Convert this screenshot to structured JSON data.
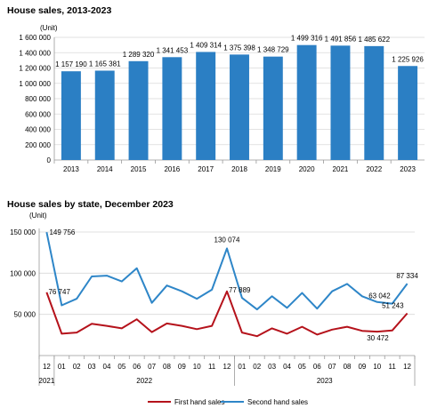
{
  "chart_data": [
    {
      "type": "bar",
      "title": "House sales, 2013-2023",
      "ylabel": "(Unit)",
      "categories": [
        "2013",
        "2014",
        "2015",
        "2016",
        "2017",
        "2018",
        "2019",
        "2020",
        "2021",
        "2022",
        "2023"
      ],
      "values": [
        1157190,
        1165381,
        1289320,
        1341453,
        1409314,
        1375398,
        1348729,
        1499316,
        1491856,
        1485622,
        1225926
      ],
      "data_labels": [
        "1 157 190",
        "1 165 381",
        "1 289 320",
        "1 341 453",
        "1 409 314",
        "1 375 398",
        "1 348 729",
        "1 499 316",
        "1 491 856",
        "1 485 622",
        "1 225 926"
      ],
      "ylim": [
        0,
        1600000
      ],
      "yticks": [
        0,
        200000,
        400000,
        600000,
        800000,
        1000000,
        1200000,
        1400000,
        1600000
      ],
      "ytick_labels": [
        "0",
        "200 000",
        "400 000",
        "600 000",
        "800 000",
        "1 000 000",
        "1 200 000",
        "1 400 000",
        "1 600 000"
      ],
      "color": "#2b7fc4",
      "grid": true
    },
    {
      "type": "line",
      "title": "House sales by state, December 2023",
      "ylabel": "(Unit)",
      "months": [
        "12",
        "01",
        "02",
        "03",
        "04",
        "05",
        "06",
        "07",
        "08",
        "09",
        "10",
        "11",
        "12",
        "01",
        "02",
        "03",
        "04",
        "05",
        "06",
        "07",
        "08",
        "09",
        "10",
        "11",
        "12"
      ],
      "year_labels": [
        "2021",
        "2022",
        "2023"
      ],
      "ylim": [
        0,
        150000
      ],
      "yticks": [
        50000,
        100000,
        150000
      ],
      "ytick_labels": [
        "50 000",
        "100 000",
        "150 000"
      ],
      "grid": true,
      "legend_position": "bottom",
      "series": [
        {
          "name": "First hand sales",
          "color": "#b5121b",
          "values": [
            76747,
            26500,
            28000,
            38500,
            36000,
            33000,
            44000,
            28500,
            39000,
            36000,
            32000,
            36000,
            77889,
            28000,
            23500,
            33000,
            26500,
            35000,
            25500,
            31500,
            35000,
            30000,
            29000,
            30472,
            51243
          ]
        },
        {
          "name": "Second hand sales",
          "color": "#2e86c8",
          "values": [
            149756,
            61000,
            69000,
            96000,
            97000,
            90000,
            106000,
            64000,
            85000,
            78000,
            69000,
            80000,
            130074,
            70000,
            56000,
            72000,
            58000,
            76000,
            57000,
            78000,
            87000,
            72000,
            65000,
            63042,
            87334
          ]
        }
      ],
      "annotations": [
        {
          "series": 0,
          "index": 0,
          "text": "76 747"
        },
        {
          "series": 1,
          "index": 0,
          "text": "149 756"
        },
        {
          "series": 1,
          "index": 12,
          "text": "130 074"
        },
        {
          "series": 0,
          "index": 12,
          "text": "77 889"
        },
        {
          "series": 1,
          "index": 23,
          "text": "63 042"
        },
        {
          "series": 1,
          "index": 24,
          "text": "87 334"
        },
        {
          "series": 0,
          "index": 23,
          "text": "30 472"
        },
        {
          "series": 0,
          "index": 24,
          "text": "51 243"
        }
      ]
    }
  ]
}
